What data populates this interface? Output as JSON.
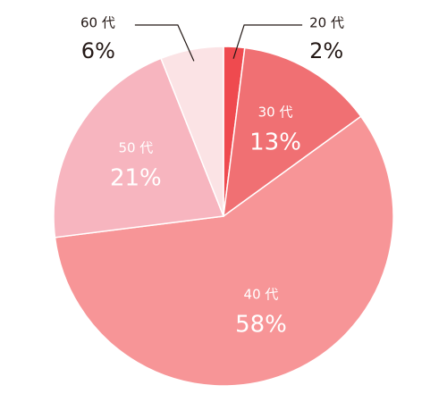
{
  "chart_data": {
    "type": "pie",
    "categories": [
      "20 代",
      "30 代",
      "40 代",
      "50 代",
      "60 代"
    ],
    "values": [
      2,
      13,
      58,
      21,
      6
    ],
    "value_labels": [
      "2%",
      "13%",
      "58%",
      "21%",
      "6%"
    ],
    "colors": [
      "#ef4a4f",
      "#f07073",
      "#f79597",
      "#f7b5bf",
      "#fbe3e5"
    ]
  }
}
